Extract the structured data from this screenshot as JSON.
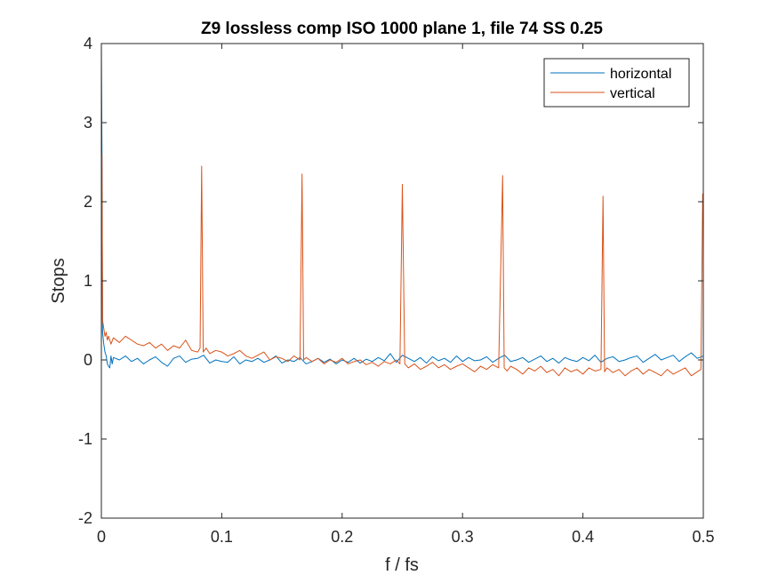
{
  "chart_data": {
    "type": "line",
    "title": "Z9 lossless comp ISO 1000 plane 1, file 74 SS 0.25",
    "xlabel": "f / fs",
    "ylabel": "Stops",
    "xlim": [
      0,
      0.5
    ],
    "ylim": [
      -2,
      4
    ],
    "xticks": [
      0,
      0.1,
      0.2,
      0.3,
      0.4,
      0.5
    ],
    "xtick_labels": [
      "0",
      "0.1",
      "0.2",
      "0.3",
      "0.4",
      "0.5"
    ],
    "yticks": [
      -2,
      -1,
      0,
      1,
      2,
      3,
      4
    ],
    "ytick_labels": [
      "-2",
      "-1",
      "0",
      "1",
      "2",
      "3",
      "4"
    ],
    "grid": false,
    "legend_position": "top-right",
    "series": [
      {
        "name": "horizontal",
        "color": "#0072BD",
        "x": [
          0,
          0.0005,
          0.001,
          0.002,
          0.003,
          0.004,
          0.005,
          0.006,
          0.007,
          0.008,
          0.009,
          0.01,
          0.015,
          0.02,
          0.025,
          0.03,
          0.035,
          0.04,
          0.045,
          0.05,
          0.055,
          0.06,
          0.065,
          0.07,
          0.075,
          0.08,
          0.085,
          0.09,
          0.095,
          0.1,
          0.105,
          0.11,
          0.115,
          0.12,
          0.125,
          0.13,
          0.135,
          0.14,
          0.145,
          0.15,
          0.155,
          0.16,
          0.165,
          0.17,
          0.175,
          0.18,
          0.185,
          0.19,
          0.195,
          0.2,
          0.205,
          0.21,
          0.215,
          0.22,
          0.225,
          0.23,
          0.235,
          0.24,
          0.245,
          0.25,
          0.255,
          0.26,
          0.265,
          0.27,
          0.275,
          0.28,
          0.285,
          0.29,
          0.295,
          0.3,
          0.305,
          0.31,
          0.315,
          0.32,
          0.325,
          0.33,
          0.335,
          0.34,
          0.345,
          0.35,
          0.355,
          0.36,
          0.365,
          0.37,
          0.375,
          0.38,
          0.385,
          0.39,
          0.395,
          0.4,
          0.405,
          0.41,
          0.415,
          0.42,
          0.425,
          0.43,
          0.435,
          0.44,
          0.445,
          0.45,
          0.455,
          0.46,
          0.465,
          0.47,
          0.475,
          0.48,
          0.485,
          0.49,
          0.495,
          0.5
        ],
        "y": [
          4.0,
          2.6,
          0.35,
          0.2,
          0.1,
          0.05,
          -0.05,
          -0.08,
          -0.1,
          0.05,
          -0.05,
          0.03,
          0.0,
          0.05,
          -0.02,
          0.02,
          -0.05,
          0.0,
          0.04,
          -0.03,
          -0.08,
          0.02,
          0.05,
          -0.03,
          0.01,
          0.02,
          0.06,
          -0.04,
          0.0,
          -0.02,
          -0.03,
          0.04,
          -0.05,
          0.0,
          -0.02,
          0.02,
          -0.03,
          0.0,
          0.05,
          -0.04,
          0.0,
          -0.02,
          0.03,
          -0.05,
          -0.02,
          0.02,
          -0.03,
          0.01,
          -0.05,
          0.0,
          -0.03,
          0.02,
          -0.04,
          0.01,
          -0.02,
          0.03,
          -0.01,
          0.08,
          -0.03,
          0.06,
          0.02,
          -0.02,
          0.03,
          -0.04,
          0.04,
          -0.01,
          0.02,
          -0.03,
          0.05,
          -0.02,
          0.03,
          -0.01,
          0.0,
          0.04,
          -0.03,
          0.02,
          0.06,
          -0.02,
          0.0,
          0.03,
          -0.03,
          0.01,
          0.05,
          -0.02,
          0.02,
          -0.04,
          0.03,
          0.0,
          -0.02,
          0.03,
          -0.01,
          0.06,
          -0.03,
          0.02,
          0.04,
          -0.02,
          0.0,
          0.03,
          0.05,
          -0.03,
          0.02,
          0.07,
          0.0,
          0.03,
          0.06,
          -0.02,
          0.04,
          0.09,
          0.02,
          0.05
        ]
      },
      {
        "name": "vertical",
        "color": "#D95319",
        "x": [
          0,
          0.0005,
          0.001,
          0.002,
          0.003,
          0.004,
          0.005,
          0.006,
          0.008,
          0.01,
          0.015,
          0.02,
          0.025,
          0.03,
          0.035,
          0.04,
          0.045,
          0.05,
          0.055,
          0.06,
          0.065,
          0.07,
          0.075,
          0.08,
          0.082,
          0.0833,
          0.0846,
          0.087,
          0.09,
          0.095,
          0.1,
          0.105,
          0.11,
          0.115,
          0.12,
          0.125,
          0.13,
          0.135,
          0.14,
          0.145,
          0.15,
          0.155,
          0.16,
          0.165,
          0.1667,
          0.168,
          0.17,
          0.175,
          0.18,
          0.185,
          0.19,
          0.195,
          0.2,
          0.205,
          0.21,
          0.215,
          0.22,
          0.225,
          0.23,
          0.235,
          0.24,
          0.245,
          0.248,
          0.25,
          0.252,
          0.255,
          0.26,
          0.265,
          0.27,
          0.275,
          0.28,
          0.285,
          0.29,
          0.295,
          0.3,
          0.305,
          0.31,
          0.315,
          0.32,
          0.325,
          0.33,
          0.3333,
          0.3346,
          0.337,
          0.34,
          0.345,
          0.35,
          0.355,
          0.36,
          0.365,
          0.37,
          0.375,
          0.38,
          0.385,
          0.39,
          0.395,
          0.4,
          0.405,
          0.41,
          0.415,
          0.4167,
          0.418,
          0.42,
          0.425,
          0.43,
          0.435,
          0.44,
          0.445,
          0.45,
          0.455,
          0.46,
          0.465,
          0.47,
          0.475,
          0.48,
          0.485,
          0.49,
          0.495,
          0.498,
          0.4995,
          0.5
        ],
        "y": [
          0.2,
          2.6,
          0.5,
          0.4,
          0.3,
          0.35,
          0.25,
          0.3,
          0.2,
          0.28,
          0.22,
          0.3,
          0.25,
          0.2,
          0.18,
          0.22,
          0.15,
          0.2,
          0.12,
          0.18,
          0.15,
          0.25,
          0.12,
          0.1,
          0.15,
          2.45,
          0.1,
          0.15,
          0.08,
          0.12,
          0.1,
          0.05,
          0.08,
          0.12,
          0.05,
          0.02,
          0.06,
          0.1,
          0.0,
          0.04,
          0.02,
          -0.02,
          0.05,
          0.0,
          2.35,
          0.0,
          0.03,
          -0.02,
          0.02,
          -0.05,
          0.0,
          -0.03,
          0.02,
          -0.05,
          -0.02,
          0.0,
          -0.06,
          -0.03,
          -0.08,
          -0.02,
          -0.05,
          0.0,
          -0.05,
          2.22,
          -0.05,
          -0.1,
          -0.05,
          -0.12,
          -0.08,
          -0.03,
          -0.1,
          -0.06,
          -0.12,
          -0.08,
          -0.05,
          -0.1,
          -0.15,
          -0.08,
          -0.12,
          -0.06,
          -0.1,
          2.33,
          -0.1,
          -0.14,
          -0.08,
          -0.12,
          -0.18,
          -0.1,
          -0.14,
          -0.08,
          -0.16,
          -0.12,
          -0.2,
          -0.1,
          -0.15,
          -0.12,
          -0.18,
          -0.1,
          -0.14,
          -0.12,
          2.07,
          -0.15,
          -0.1,
          -0.16,
          -0.12,
          -0.2,
          -0.14,
          -0.1,
          -0.18,
          -0.12,
          -0.16,
          -0.2,
          -0.12,
          -0.18,
          -0.14,
          -0.1,
          -0.2,
          -0.15,
          -0.12,
          2.1,
          2.1
        ]
      }
    ]
  }
}
